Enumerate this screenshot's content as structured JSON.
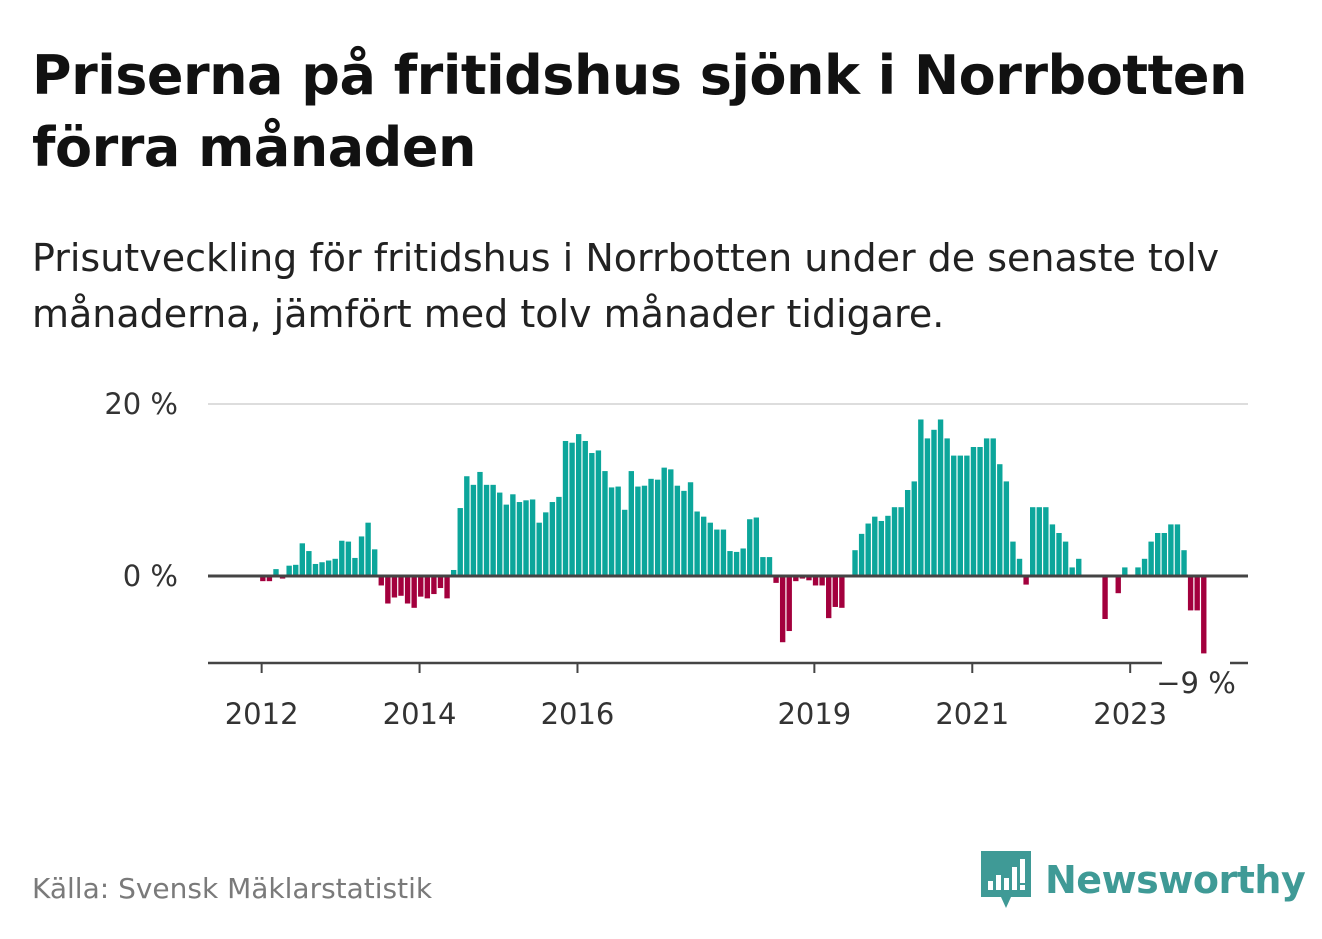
{
  "header": {
    "title": "Priserna på fritidshus sjönk i Norrbotten förra månaden",
    "subtitle": "Prisutveckling för fritidshus i Norrbotten under de senaste tolv månaderna, jämfört med tolv månader tidigare."
  },
  "footer": {
    "source": "Källa: Svensk Mäklarstatistik",
    "brand": "Newsworthy"
  },
  "colors": {
    "positive": "#0ca69b",
    "negative": "#a3003d",
    "brand": "#3f9a96"
  },
  "chart_data": {
    "type": "bar",
    "title": "Priserna på fritidshus sjönk i Norrbotten förra månaden",
    "xlabel": "",
    "ylabel": "",
    "ylim": [
      -10,
      20
    ],
    "grid": true,
    "legend": "none",
    "y_ticks": [
      {
        "value": 20,
        "label": "20 %"
      },
      {
        "value": 0,
        "label": "0 %"
      }
    ],
    "x_ticks": [
      {
        "index": 8,
        "label": "2012"
      },
      {
        "index": 32,
        "label": "2014"
      },
      {
        "index": 56,
        "label": "2016"
      },
      {
        "index": 92,
        "label": "2019"
      },
      {
        "index": 116,
        "label": "2021"
      },
      {
        "index": 140,
        "label": "2023"
      }
    ],
    "last_value_label": "−9 %",
    "start": "2011-05",
    "unit": "%",
    "values": [
      0,
      0,
      0,
      0,
      0,
      0,
      0,
      0,
      -0.6,
      -0.6,
      0.8,
      -0.3,
      1.2,
      1.3,
      3.8,
      2.9,
      1.4,
      1.6,
      1.8,
      2,
      4.1,
      4,
      2.1,
      4.6,
      6.2,
      3.1,
      -1.1,
      -3.2,
      -2.5,
      -2.3,
      -3.2,
      -3.7,
      -2.4,
      -2.6,
      -2.1,
      -1.4,
      -2.6,
      0.7,
      7.9,
      11.6,
      10.6,
      12.1,
      10.6,
      10.6,
      9.7,
      8.3,
      9.5,
      8.6,
      8.8,
      8.9,
      6.2,
      7.4,
      8.6,
      9.2,
      15.7,
      15.5,
      16.5,
      15.7,
      14.3,
      14.6,
      12.2,
      10.3,
      10.4,
      7.7,
      12.2,
      10.4,
      10.5,
      11.3,
      11.2,
      12.6,
      12.4,
      10.5,
      9.9,
      10.9,
      7.5,
      6.9,
      6.2,
      5.4,
      5.4,
      2.9,
      2.8,
      3.2,
      6.6,
      6.8,
      2.2,
      2.2,
      -0.8,
      -7.7,
      -6.4,
      -0.6,
      -0.3,
      -0.5,
      -1.1,
      -1.1,
      -4.9,
      -3.6,
      -3.7,
      0,
      3,
      4.9,
      6.1,
      6.9,
      6.4,
      7,
      8,
      8,
      10,
      11,
      18.2,
      16,
      17,
      18.2,
      16,
      14,
      14,
      14,
      15,
      15,
      16,
      16,
      13,
      11,
      4,
      2,
      -1,
      8,
      8,
      8,
      6,
      5,
      4,
      1,
      2,
      0,
      0,
      0,
      -5,
      0,
      -2,
      1,
      0,
      1,
      2,
      4,
      5,
      5,
      6,
      6,
      3,
      -4,
      -4,
      -9
    ]
  }
}
